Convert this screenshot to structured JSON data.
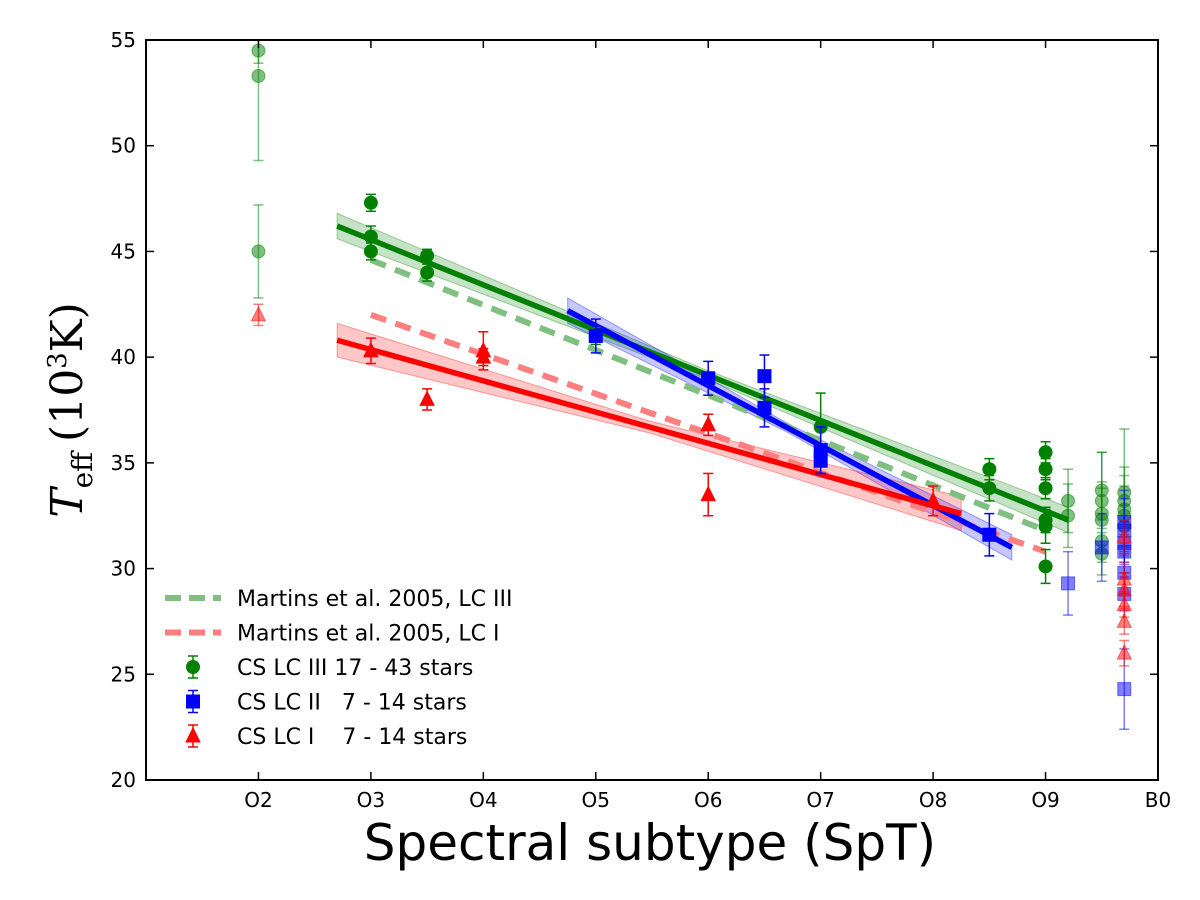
{
  "chart_data": {
    "type": "scatter",
    "xlabel": "Spectral subtype (SpT)",
    "ylabel": {
      "symbol": "T",
      "subscript": "eff",
      "unit_open": "(10",
      "unit_exp": "3",
      "unit_close": "K)"
    },
    "xlim": [
      2.0,
      11.0
    ],
    "ylim": [
      20,
      55
    ],
    "x_tick_values": [
      3,
      4,
      5,
      6,
      7,
      8,
      9,
      10,
      11
    ],
    "x_tick_labels": [
      "O2",
      "O3",
      "O4",
      "O5",
      "O6",
      "O7",
      "O8",
      "O9",
      "B0"
    ],
    "y_tick_values": [
      20,
      25,
      30,
      35,
      40,
      45,
      50,
      55
    ],
    "y_tick_labels": [
      "20",
      "25",
      "30",
      "35",
      "40",
      "45",
      "50",
      "55"
    ],
    "colors": {
      "lc3": "#008000",
      "lc2": "#0000ff",
      "lc1": "#ff0000",
      "lc3_martins": "#7fbf7f",
      "lc1_martins": "#ff7f7f"
    },
    "legend": [
      {
        "label": "Martins et al. 2005, LC III",
        "kind": "dashed",
        "color": "#7fbf7f"
      },
      {
        "label": "Martins et al. 2005, LC I",
        "kind": "dashed",
        "color": "#ff7f7f"
      },
      {
        "label": "CS LC III 17 - 43 stars",
        "kind": "circle",
        "color": "#008000"
      },
      {
        "label": "CS LC II   7 - 14 stars",
        "kind": "square",
        "color": "#0000ff"
      },
      {
        "label": "CS LC I    7 - 14 stars",
        "kind": "triangle",
        "color": "#ff0000"
      }
    ],
    "legend_position": "lower-left",
    "fits": [
      {
        "name": "LC III fit",
        "color": "#008000",
        "x": [
          3.7,
          10.2
        ],
        "y": [
          46.2,
          32.3
        ],
        "band": 0.6
      },
      {
        "name": "LC II fit",
        "color": "#0000ff",
        "x": [
          5.75,
          9.7
        ],
        "y": [
          42.2,
          31.0
        ],
        "band": 0.6
      },
      {
        "name": "LC I fit",
        "color": "#ff0000",
        "x": [
          3.7,
          9.25
        ],
        "y": [
          40.8,
          32.6
        ],
        "band": 0.8
      }
    ],
    "martins": [
      {
        "name": "Martins et al. 2005, LC III",
        "color": "#7fbf7f",
        "x": [
          4.0,
          10.0
        ],
        "y": [
          44.6,
          31.8
        ]
      },
      {
        "name": "Martins et al. 2005, LC I",
        "color": "#ff7f7f",
        "x": [
          4.0,
          10.0
        ],
        "y": [
          42.0,
          30.8
        ]
      }
    ],
    "series": [
      {
        "name": "CS LC III",
        "marker": "circle",
        "color": "#008000",
        "points": [
          {
            "x": 3.0,
            "y": 54.5,
            "err": 0.6,
            "faded": true
          },
          {
            "x": 3.0,
            "y": 53.3,
            "err": 4.0,
            "faded": true
          },
          {
            "x": 3.0,
            "y": 45.0,
            "err": 2.2,
            "faded": true
          },
          {
            "x": 4.0,
            "y": 47.3,
            "err": 0.4
          },
          {
            "x": 4.0,
            "y": 45.7,
            "err": 0.5
          },
          {
            "x": 4.0,
            "y": 45.0,
            "err": 0.4
          },
          {
            "x": 4.5,
            "y": 44.8,
            "err": 0.3
          },
          {
            "x": 4.5,
            "y": 44.0,
            "err": 0.4
          },
          {
            "x": 6.0,
            "y": 41.0,
            "err": 0.4
          },
          {
            "x": 8.0,
            "y": 36.7,
            "err": 1.6
          },
          {
            "x": 9.5,
            "y": 34.7,
            "err": 0.5
          },
          {
            "x": 9.5,
            "y": 33.8,
            "err": 0.6
          },
          {
            "x": 10.0,
            "y": 35.5,
            "err": 0.5
          },
          {
            "x": 10.0,
            "y": 34.7,
            "err": 0.5
          },
          {
            "x": 10.0,
            "y": 33.8,
            "err": 0.5
          },
          {
            "x": 10.0,
            "y": 32.3,
            "err": 0.6
          },
          {
            "x": 10.0,
            "y": 32.0,
            "err": 0.8
          },
          {
            "x": 10.0,
            "y": 30.1,
            "err": 0.8
          },
          {
            "x": 10.2,
            "y": 33.2,
            "err": 1.5,
            "faded": true
          },
          {
            "x": 10.2,
            "y": 32.5,
            "err": 1.5,
            "faded": true
          },
          {
            "x": 10.5,
            "y": 33.7,
            "err": 1.8,
            "faded": true
          },
          {
            "x": 10.5,
            "y": 33.2,
            "err": 2.3,
            "faded": true
          },
          {
            "x": 10.5,
            "y": 32.6,
            "err": 1.5,
            "faded": true
          },
          {
            "x": 10.5,
            "y": 32.3,
            "err": 1.5,
            "faded": true
          },
          {
            "x": 10.5,
            "y": 31.3,
            "err": 1.0,
            "faded": true
          },
          {
            "x": 10.5,
            "y": 30.7,
            "err": 1.0,
            "faded": true
          },
          {
            "x": 10.7,
            "y": 33.6,
            "err": 3.0,
            "faded": true
          },
          {
            "x": 10.7,
            "y": 33.2,
            "err": 1.6,
            "faded": true
          },
          {
            "x": 10.7,
            "y": 32.8,
            "err": 1.6,
            "faded": true
          },
          {
            "x": 10.7,
            "y": 32.5,
            "err": 1.4,
            "faded": true
          },
          {
            "x": 10.7,
            "y": 32.0,
            "err": 1.0,
            "faded": true
          }
        ]
      },
      {
        "name": "CS LC II",
        "marker": "square",
        "color": "#0000ff",
        "points": [
          {
            "x": 6.0,
            "y": 41.0,
            "err": 0.8
          },
          {
            "x": 7.0,
            "y": 39.0,
            "err": 0.8
          },
          {
            "x": 7.5,
            "y": 39.1,
            "err": 1.0
          },
          {
            "x": 7.5,
            "y": 37.6,
            "err": 0.9
          },
          {
            "x": 8.0,
            "y": 35.6,
            "err": 1.1
          },
          {
            "x": 8.0,
            "y": 35.1,
            "err": 0.6
          },
          {
            "x": 9.5,
            "y": 31.6,
            "err": 1.0
          },
          {
            "x": 10.2,
            "y": 29.3,
            "err": 1.5,
            "faded": true
          },
          {
            "x": 10.5,
            "y": 31.0,
            "err": 1.6,
            "faded": true
          },
          {
            "x": 10.7,
            "y": 32.2,
            "err": 1.5,
            "faded": true
          },
          {
            "x": 10.7,
            "y": 31.8,
            "err": 1.5,
            "faded": true
          },
          {
            "x": 10.7,
            "y": 31.2,
            "err": 1.0,
            "faded": true
          },
          {
            "x": 10.7,
            "y": 30.8,
            "err": 1.0,
            "faded": true
          },
          {
            "x": 10.7,
            "y": 29.8,
            "err": 1.0,
            "faded": true
          },
          {
            "x": 10.7,
            "y": 28.8,
            "err": 0.8,
            "faded": true
          },
          {
            "x": 10.7,
            "y": 24.3,
            "err": 1.9,
            "faded": true
          }
        ]
      },
      {
        "name": "CS LC I",
        "marker": "triangle",
        "color": "#ff0000",
        "points": [
          {
            "x": 3.0,
            "y": 42.0,
            "err": 0.5,
            "faded": true
          },
          {
            "x": 4.0,
            "y": 40.3,
            "err": 0.6
          },
          {
            "x": 4.5,
            "y": 38.0,
            "err": 0.5
          },
          {
            "x": 5.0,
            "y": 40.3,
            "err": 0.9
          },
          {
            "x": 5.0,
            "y": 40.0,
            "err": 0.4
          },
          {
            "x": 7.0,
            "y": 36.8,
            "err": 0.5
          },
          {
            "x": 7.0,
            "y": 33.5,
            "err": 1.0
          },
          {
            "x": 9.0,
            "y": 33.2,
            "err": 0.7
          },
          {
            "x": 10.7,
            "y": 31.5,
            "err": 0.8,
            "faded": true
          },
          {
            "x": 10.7,
            "y": 29.5,
            "err": 0.8,
            "faded": true
          },
          {
            "x": 10.7,
            "y": 29.0,
            "err": 0.8,
            "faded": true
          },
          {
            "x": 10.7,
            "y": 28.3,
            "err": 0.6,
            "faded": true
          },
          {
            "x": 10.7,
            "y": 27.5,
            "err": 0.6,
            "faded": true
          },
          {
            "x": 10.7,
            "y": 26.0,
            "err": 0.6,
            "faded": true
          }
        ]
      }
    ]
  }
}
